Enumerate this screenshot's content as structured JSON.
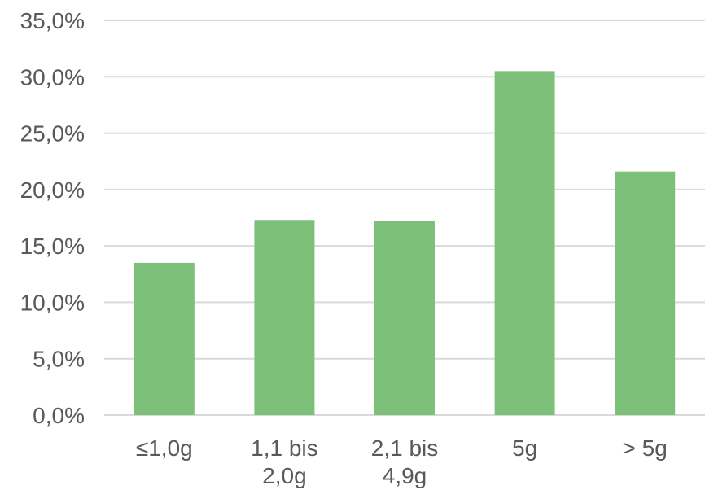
{
  "chart_data": {
    "type": "bar",
    "categories": [
      [
        "≤1,0g"
      ],
      [
        "1,1 bis",
        "2,0g"
      ],
      [
        "2,1 bis",
        "4,9g"
      ],
      [
        "5g"
      ],
      [
        "> 5g"
      ]
    ],
    "values": [
      13.5,
      17.3,
      17.2,
      30.5,
      21.6
    ],
    "ylim": [
      0,
      35
    ],
    "yticks": [
      0,
      5,
      10,
      15,
      20,
      25,
      30,
      35
    ],
    "ytick_labels": [
      "0,0%",
      "5,0%",
      "10,0%",
      "15,0%",
      "20,0%",
      "25,0%",
      "30,0%",
      "35,0%"
    ],
    "grid": true,
    "colors": {
      "bar": "#7cc07a"
    }
  }
}
